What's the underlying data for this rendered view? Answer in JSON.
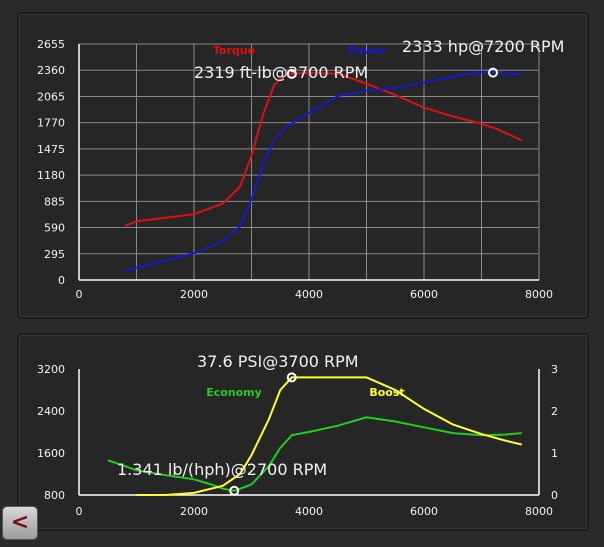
{
  "back_button": {
    "label": "<"
  },
  "chart_data": [
    {
      "type": "line",
      "xlim": [
        0,
        8000
      ],
      "ylim": [
        0,
        2655
      ],
      "x_ticks": [
        "0",
        "2000",
        "4000",
        "6000",
        "8000"
      ],
      "y_ticks": [
        "0",
        "295",
        "590",
        "885",
        "1180",
        "1475",
        "1770",
        "2065",
        "2360",
        "2655"
      ],
      "grid": true,
      "legend_placement": "top-center",
      "series": [
        {
          "name": "Torque",
          "color": "#e01010",
          "points": [
            [
              800,
              610
            ],
            [
              1000,
              660
            ],
            [
              1500,
              700
            ],
            [
              2000,
              740
            ],
            [
              2500,
              860
            ],
            [
              2800,
              1050
            ],
            [
              3000,
              1400
            ],
            [
              3200,
              1860
            ],
            [
              3400,
              2200
            ],
            [
              3600,
              2310
            ],
            [
              3700,
              2319
            ],
            [
              4000,
              2330
            ],
            [
              4500,
              2320
            ],
            [
              5000,
              2210
            ],
            [
              5500,
              2080
            ],
            [
              6000,
              1940
            ],
            [
              6500,
              1840
            ],
            [
              7000,
              1760
            ],
            [
              7300,
              1690
            ],
            [
              7700,
              1570
            ]
          ]
        },
        {
          "name": "Power",
          "color": "#1818d0",
          "points": [
            [
              800,
              100
            ],
            [
              1000,
              140
            ],
            [
              1500,
              220
            ],
            [
              2000,
              300
            ],
            [
              2500,
              440
            ],
            [
              2800,
              600
            ],
            [
              3000,
              910
            ],
            [
              3200,
              1300
            ],
            [
              3400,
              1580
            ],
            [
              3600,
              1720
            ],
            [
              4000,
              1880
            ],
            [
              4500,
              2070
            ],
            [
              5000,
              2130
            ],
            [
              5500,
              2160
            ],
            [
              6000,
              2220
            ],
            [
              6500,
              2290
            ],
            [
              7000,
              2340
            ],
            [
              7200,
              2333
            ],
            [
              7700,
              2310
            ]
          ]
        }
      ],
      "annotations": [
        {
          "text": "2319 ft-lb@3700 RPM",
          "series": "Torque",
          "x": 3700,
          "y": 2319
        },
        {
          "text": "2333 hp@7200 RPM",
          "series": "Power",
          "x": 7200,
          "y": 2333
        }
      ]
    },
    {
      "type": "line",
      "xlim": [
        0,
        8000
      ],
      "ylim": [
        800,
        3200
      ],
      "y2lim": [
        0,
        3
      ],
      "x_ticks": [
        "0",
        "2000",
        "4000",
        "6000",
        "8000"
      ],
      "y_ticks": [
        "800",
        "1600",
        "2400",
        "3200"
      ],
      "y2_ticks": [
        "0",
        "1",
        "2",
        "3"
      ],
      "grid": false,
      "legend_placement": "top-center",
      "series": [
        {
          "name": "Economy",
          "color": "#22cc22",
          "axis": "left",
          "points": [
            [
              500,
              1460
            ],
            [
              800,
              1350
            ],
            [
              1000,
              1270
            ],
            [
              1500,
              1180
            ],
            [
              2000,
              1100
            ],
            [
              2300,
              1000
            ],
            [
              2500,
              920
            ],
            [
              2700,
              880
            ],
            [
              3000,
              1000
            ],
            [
              3300,
              1350
            ],
            [
              3500,
              1700
            ],
            [
              3700,
              1940
            ],
            [
              4000,
              2000
            ],
            [
              4500,
              2120
            ],
            [
              5000,
              2280
            ],
            [
              5500,
              2200
            ],
            [
              6000,
              2090
            ],
            [
              6500,
              1980
            ],
            [
              7000,
              1940
            ],
            [
              7400,
              1950
            ],
            [
              7700,
              1980
            ]
          ]
        },
        {
          "name": "Boost",
          "color": "#ffff30",
          "axis": "right",
          "points": [
            [
              1000,
              0
            ],
            [
              1500,
              0
            ],
            [
              2000,
              0.05
            ],
            [
              2500,
              0.22
            ],
            [
              2800,
              0.5
            ],
            [
              3000,
              0.95
            ],
            [
              3300,
              1.8
            ],
            [
              3500,
              2.5
            ],
            [
              3700,
              2.8
            ],
            [
              4000,
              2.8
            ],
            [
              5000,
              2.8
            ],
            [
              5500,
              2.5
            ],
            [
              6000,
              2.05
            ],
            [
              6500,
              1.68
            ],
            [
              7000,
              1.45
            ],
            [
              7400,
              1.3
            ],
            [
              7700,
              1.2
            ]
          ]
        }
      ],
      "annotations": [
        {
          "text": "37.6 PSI@3700 RPM",
          "series": "Boost",
          "x": 3700,
          "y": 2.8
        },
        {
          "text": "1.341 lb/(hph)@2700 RPM",
          "series": "Economy",
          "x": 2700,
          "y": 880
        }
      ]
    }
  ]
}
